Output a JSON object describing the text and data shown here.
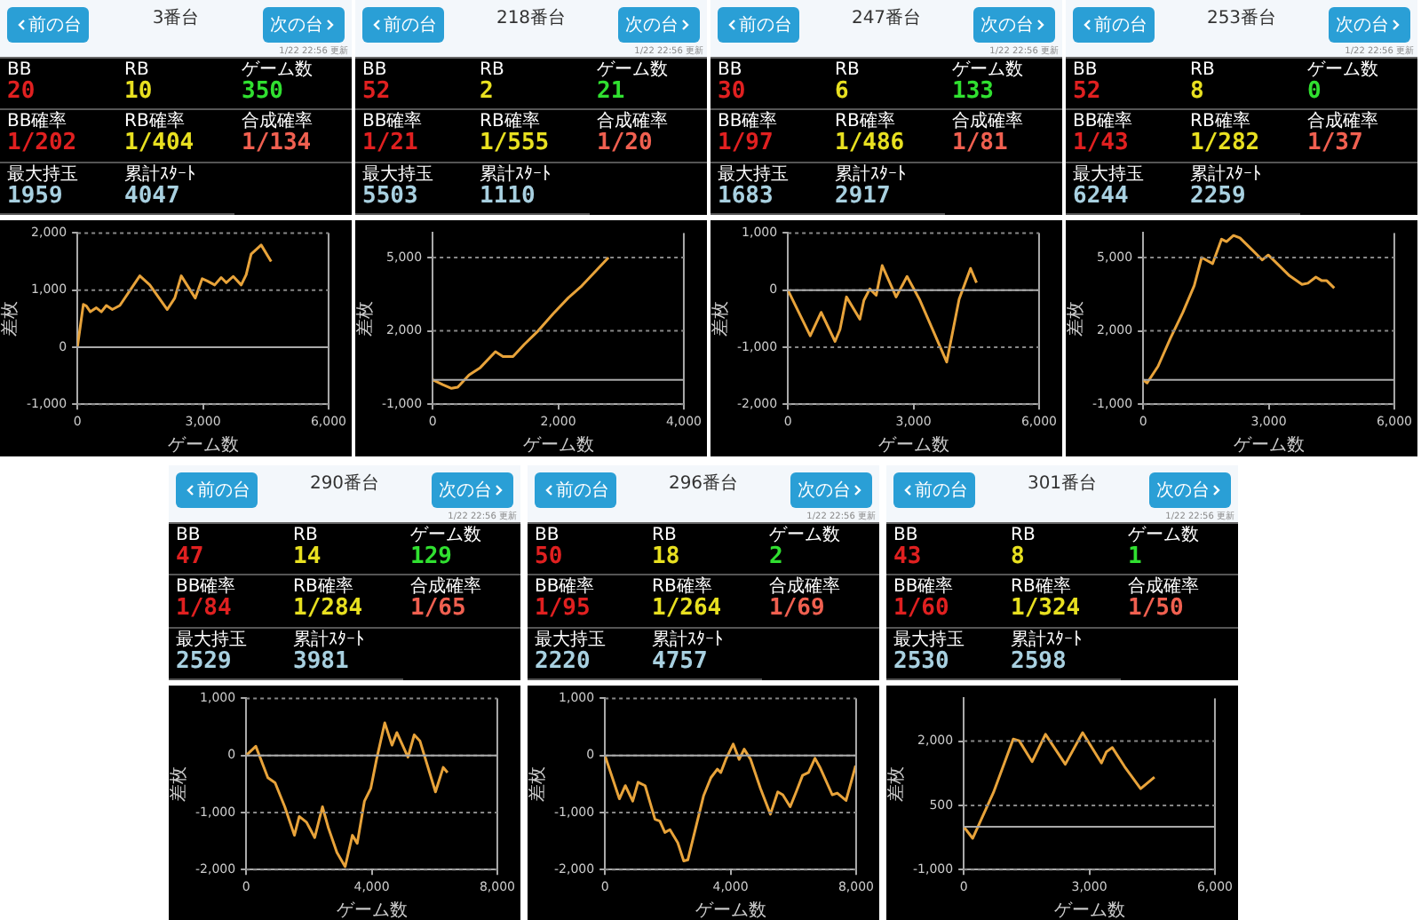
{
  "chart_data": [
    {
      "type": "other",
      "title": "3番台",
      "annotations": [
        "前の台",
        "次の台",
        "1/22 22:56 更新",
        "BB",
        "20",
        "RB",
        "10",
        "ゲーム数",
        "350",
        "BB確率",
        "1/202",
        "RB確率",
        "1/404",
        "合成確率",
        "1/134",
        "最大持玉",
        "1959",
        "累計ｽﾀｰﾄ",
        "4047"
      ]
    },
    {
      "type": "line",
      "xlabel": "ゲーム数",
      "ylabel": "差枚",
      "color": "#e8a33a",
      "grid": "y",
      "ref_lines": [
        {
          "axis": "y",
          "value": 0
        }
      ],
      "xlim": [
        0,
        6000
      ],
      "xticks": [
        {
          "value": 0,
          "label": "0"
        },
        {
          "value": 3000,
          "label": "3,000"
        },
        {
          "value": 6000,
          "label": "6,000"
        }
      ],
      "ylim": [
        -1000,
        2000
      ],
      "yticks": [
        {
          "value": -1000,
          "label": "-1,000"
        },
        {
          "value": 0,
          "label": "0"
        },
        {
          "value": 1000,
          "label": "1,000"
        },
        {
          "value": 2000,
          "label": "2,000"
        }
      ],
      "x": [
        0,
        143,
        215,
        310,
        453,
        573,
        692,
        835,
        1014,
        1491,
        1730,
        2147,
        2326,
        2481,
        2815,
        2982,
        3101,
        3280,
        3435,
        3555,
        3722,
        3913,
        4032,
        4151,
        4390,
        4628
      ],
      "values": [
        0,
        750,
        720,
        620,
        690,
        620,
        730,
        660,
        730,
        1250,
        1090,
        660,
        860,
        1250,
        860,
        1200,
        1160,
        1090,
        1220,
        1130,
        1240,
        1090,
        1270,
        1630,
        1790,
        1500
      ]
    },
    {
      "type": "other",
      "title": "218番台",
      "annotations": [
        "前の台",
        "次の台",
        "1/22 22:56 更新",
        "BB",
        "52",
        "RB",
        "2",
        "ゲーム数",
        "21",
        "BB確率",
        "1/21",
        "RB確率",
        "1/555",
        "合成確率",
        "1/20",
        "最大持玉",
        "5503",
        "累計ｽﾀｰﾄ",
        "1110"
      ]
    },
    {
      "type": "line",
      "xlabel": "ゲーム数",
      "ylabel": "差枚",
      "color": "#e8a33a",
      "grid": "y",
      "ref_lines": [
        {
          "axis": "y",
          "value": 0
        }
      ],
      "xlim": [
        0,
        4000
      ],
      "xticks": [
        {
          "value": 0,
          "label": "0"
        },
        {
          "value": 2000,
          "label": "2,000"
        },
        {
          "value": 4000,
          "label": "4,000"
        }
      ],
      "ylim": [
        -1000,
        6000
      ],
      "yticks": [
        {
          "value": -1000,
          "label": "-1,000"
        },
        {
          "value": 2000,
          "label": "2,000"
        },
        {
          "value": 5000,
          "label": "5,000"
        }
      ],
      "x": [
        0,
        160,
        300,
        400,
        580,
        760,
        1000,
        1120,
        1280,
        1460,
        1680,
        1920,
        2160,
        2360,
        2600,
        2800
      ],
      "values": [
        0,
        -200,
        -350,
        -300,
        200,
        500,
        1150,
        950,
        950,
        1450,
        2000,
        2700,
        3350,
        3800,
        4450,
        5000
      ]
    },
    {
      "type": "other",
      "title": "247番台",
      "annotations": [
        "前の台",
        "次の台",
        "1/22 22:56 更新",
        "BB",
        "30",
        "RB",
        "6",
        "ゲーム数",
        "133",
        "BB確率",
        "1/97",
        "RB確率",
        "1/486",
        "合成確率",
        "1/81",
        "最大持玉",
        "1683",
        "累計ｽﾀｰﾄ",
        "2917"
      ]
    },
    {
      "type": "line",
      "xlabel": "ゲーム数",
      "ylabel": "差枚",
      "color": "#e8a33a",
      "grid": "y",
      "ref_lines": [
        {
          "axis": "y",
          "value": 0
        }
      ],
      "xlim": [
        0,
        6000
      ],
      "xticks": [
        {
          "value": 0,
          "label": "0"
        },
        {
          "value": 3000,
          "label": "3,000"
        },
        {
          "value": 6000,
          "label": "6,000"
        }
      ],
      "ylim": [
        -2000,
        1000
      ],
      "yticks": [
        {
          "value": -2000,
          "label": "-2,000"
        },
        {
          "value": -1000,
          "label": "-1,000"
        },
        {
          "value": 0,
          "label": "0"
        },
        {
          "value": 1000,
          "label": "1,000"
        }
      ],
      "x": [
        0,
        534,
        795,
        1127,
        1245,
        1400,
        1720,
        1815,
        1957,
        2110,
        2253,
        2585,
        2846,
        3142,
        3794,
        4090,
        4363,
        4506
      ],
      "values": [
        0,
        -800,
        -390,
        -900,
        -690,
        -120,
        -510,
        -180,
        20,
        -90,
        430,
        -120,
        240,
        -160,
        -1260,
        -160,
        380,
        130
      ]
    },
    {
      "type": "other",
      "title": "253番台",
      "annotations": [
        "前の台",
        "次の台",
        "1/22 22:56 更新",
        "BB",
        "52",
        "RB",
        "8",
        "ゲーム数",
        "0",
        "BB確率",
        "1/43",
        "RB確率",
        "1/282",
        "合成確率",
        "1/37",
        "最大持玉",
        "6244",
        "累計ｽﾀｰﾄ",
        "2259"
      ]
    },
    {
      "type": "line",
      "xlabel": "ゲーム数",
      "ylabel": "差枚",
      "color": "#e8a33a",
      "grid": "y",
      "ref_lines": [
        {
          "axis": "y",
          "value": 0
        }
      ],
      "xlim": [
        0,
        6000
      ],
      "xticks": [
        {
          "value": 0,
          "label": "0"
        },
        {
          "value": 3000,
          "label": "3,000"
        },
        {
          "value": 6000,
          "label": "6,000"
        }
      ],
      "ylim": [
        -1000,
        6000
      ],
      "yticks": [
        {
          "value": -1000,
          "label": "-1,000"
        },
        {
          "value": 2000,
          "label": "2,000"
        },
        {
          "value": 5000,
          "label": "5,000"
        }
      ],
      "x": [
        0,
        95,
        356,
        652,
        948,
        1221,
        1399,
        1660,
        1874,
        1992,
        2158,
        2312,
        2609,
        2846,
        2988,
        3142,
        3498,
        3794,
        3937,
        4126,
        4269,
        4387,
        4565
      ],
      "values": [
        0,
        -130,
        550,
        1700,
        2750,
        3850,
        5000,
        4750,
        5750,
        5650,
        5900,
        5800,
        5300,
        4900,
        5100,
        4850,
        4250,
        3900,
        3950,
        4200,
        4050,
        4050,
        3750
      ]
    },
    {
      "type": "other",
      "title": "290番台",
      "annotations": [
        "前の台",
        "次の台",
        "1/22 22:56 更新",
        "BB",
        "47",
        "RB",
        "14",
        "ゲーム数",
        "129",
        "BB確率",
        "1/84",
        "RB確率",
        "1/284",
        "合成確率",
        "1/65",
        "最大持玉",
        "2529",
        "累計ｽﾀｰﾄ",
        "3981"
      ]
    },
    {
      "type": "line",
      "xlabel": "ゲーム数",
      "ylabel": "差枚",
      "color": "#e8a33a",
      "grid": "y",
      "ref_lines": [
        {
          "axis": "y",
          "value": 0
        }
      ],
      "xlim": [
        0,
        8000
      ],
      "xticks": [
        {
          "value": 0,
          "label": "0"
        },
        {
          "value": 4000,
          "label": "4,000"
        },
        {
          "value": 8000,
          "label": "8,000"
        }
      ],
      "ylim": [
        -2000,
        1000
      ],
      "yticks": [
        {
          "value": -2000,
          "label": "-2,000"
        },
        {
          "value": -1000,
          "label": "-1,000"
        },
        {
          "value": 0,
          "label": "0"
        },
        {
          "value": 1000,
          "label": "1,000"
        }
      ],
      "x": [
        0,
        308,
        692,
        923,
        1231,
        1538,
        1692,
        1923,
        2185,
        2431,
        2615,
        2892,
        3154,
        3385,
        3538,
        3769,
        3969,
        4154,
        4415,
        4646,
        4800,
        5154,
        5354,
        5538,
        6031,
        6277,
        6415
      ],
      "values": [
        0,
        160,
        -390,
        -480,
        -900,
        -1400,
        -1070,
        -1170,
        -1440,
        -900,
        -1260,
        -1700,
        -1950,
        -1400,
        -1540,
        -800,
        -580,
        -70,
        570,
        180,
        400,
        -30,
        360,
        250,
        -640,
        -210,
        -300
      ]
    },
    {
      "type": "other",
      "title": "296番台",
      "annotations": [
        "前の台",
        "次の台",
        "1/22 22:56 更新",
        "BB",
        "50",
        "RB",
        "18",
        "ゲーム数",
        "2",
        "BB確率",
        "1/95",
        "RB確率",
        "1/264",
        "合成確率",
        "1/69",
        "最大持玉",
        "2220",
        "累計ｽﾀｰﾄ",
        "4757"
      ]
    },
    {
      "type": "line",
      "xlabel": "ゲーム数",
      "ylabel": "差枚",
      "color": "#e8a33a",
      "grid": "y",
      "ref_lines": [
        {
          "axis": "y",
          "value": 0
        }
      ],
      "xlim": [
        0,
        8000
      ],
      "xticks": [
        {
          "value": 0,
          "label": "0"
        },
        {
          "value": 4000,
          "label": "4,000"
        },
        {
          "value": 8000,
          "label": "8,000"
        }
      ],
      "ylim": [
        -2000,
        1000
      ],
      "yticks": [
        {
          "value": -2000,
          "label": "-2,000"
        },
        {
          "value": -1000,
          "label": "-1,000"
        },
        {
          "value": 0,
          "label": "0"
        },
        {
          "value": 1000,
          "label": "1,000"
        }
      ],
      "x": [
        0,
        460,
        650,
        885,
        1055,
        1280,
        1595,
        1750,
        1910,
        2070,
        2320,
        2510,
        2640,
        2855,
        3140,
        3375,
        3580,
        3690,
        3850,
        4085,
        4275,
        4435,
        4640,
        4955,
        5270,
        5505,
        5665,
        5900,
        6105,
        6295,
        6485,
        6690,
        6850,
        7240,
        7400,
        7680,
        7985
      ],
      "values": [
        0,
        -760,
        -530,
        -800,
        -470,
        -530,
        -1120,
        -1150,
        -1350,
        -1300,
        -1530,
        -1850,
        -1830,
        -1350,
        -710,
        -390,
        -240,
        -300,
        -70,
        200,
        -70,
        110,
        -70,
        -580,
        -1030,
        -640,
        -690,
        -900,
        -620,
        -350,
        -300,
        -50,
        -210,
        -690,
        -660,
        -790,
        -180
      ]
    },
    {
      "type": "other",
      "title": "301番台",
      "annotations": [
        "前の台",
        "次の台",
        "1/22 22:56 更新",
        "BB",
        "43",
        "RB",
        "8",
        "ゲーム数",
        "1",
        "BB確率",
        "1/60",
        "RB確率",
        "1/324",
        "合成確率",
        "1/50",
        "最大持玉",
        "2530",
        "累計ｽﾀｰﾄ",
        "2598"
      ]
    },
    {
      "type": "line",
      "xlabel": "ゲーム数",
      "ylabel": "差枚",
      "color": "#e8a33a",
      "grid": "y",
      "ref_lines": [
        {
          "axis": "y",
          "value": 0
        }
      ],
      "xlim": [
        0,
        6000
      ],
      "xticks": [
        {
          "value": 0,
          "label": "0"
        },
        {
          "value": 3000,
          "label": "3,000"
        },
        {
          "value": 6000,
          "label": "6,000"
        }
      ],
      "ylim": [
        -1000,
        3000
      ],
      "yticks": [
        {
          "value": -1000,
          "label": "-1,000"
        },
        {
          "value": 500,
          "label": "500"
        },
        {
          "value": 2000,
          "label": "2,000"
        }
      ],
      "x": [
        0,
        213,
        710,
        1183,
        1325,
        1633,
        1953,
        2426,
        2840,
        3290,
        3408,
        3550,
        3846,
        4225,
        4556
      ],
      "values": [
        0,
        -270,
        800,
        2050,
        2010,
        1520,
        2160,
        1460,
        2200,
        1490,
        1750,
        1850,
        1400,
        890,
        1160
      ]
    }
  ]
}
